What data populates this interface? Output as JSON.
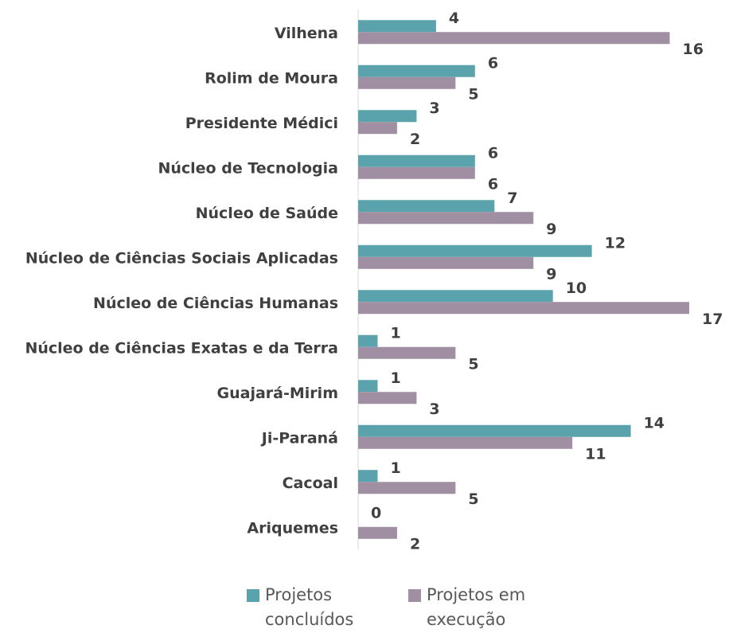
{
  "chart_data": {
    "type": "bar",
    "orientation": "horizontal",
    "categories": [
      "Vilhena",
      "Rolim de Moura",
      "Presidente Médici",
      "Núcleo de Tecnologia",
      "Núcleo de Saúde",
      "Núcleo de Ciências Sociais Aplicadas",
      "Núcleo de Ciências Humanas",
      "Núcleo de Ciências Exatas e da Terra",
      "Guajará-Mirim",
      "Ji-Paraná",
      "Cacoal",
      "Ariquemes"
    ],
    "series": [
      {
        "name": "Projetos concluídos",
        "color": "#5aa3ac",
        "values": [
          4,
          6,
          3,
          6,
          7,
          12,
          10,
          1,
          1,
          14,
          1,
          0
        ]
      },
      {
        "name": "Projetos em execução",
        "color": "#a08fa2",
        "values": [
          16,
          5,
          2,
          6,
          9,
          9,
          17,
          5,
          3,
          11,
          5,
          2
        ]
      }
    ],
    "legend": "bottom"
  }
}
